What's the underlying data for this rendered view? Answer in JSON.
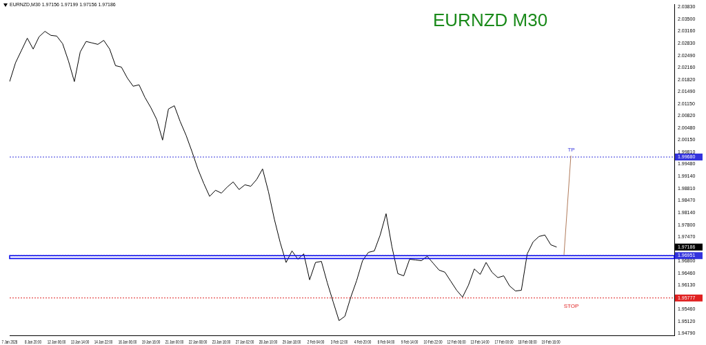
{
  "chart_data": {
    "type": "line",
    "title": "EURNZD M30",
    "subtitle": "EURNZD,M30 1.97156 1.97199 1.97156 1.97186",
    "categories": [
      "7 Jan 2026",
      null,
      null,
      null,
      "8 Jan 20:00",
      null,
      null,
      null,
      "12 Jan 06:00",
      null,
      null,
      null,
      "13 Jan 14:00",
      null,
      null,
      null,
      "14 Jan 22:00",
      null,
      null,
      null,
      "16 Jan 06:00",
      null,
      null,
      null,
      "19 Jan 16:00",
      null,
      null,
      null,
      "21 Jan 00:00",
      null,
      null,
      null,
      "22 Jan 08:00",
      null,
      null,
      null,
      "23 Jan 16:00",
      null,
      null,
      null,
      "27 Jan 02:00",
      null,
      null,
      null,
      "28 Jan 10:00",
      null,
      null,
      null,
      "29 Jan 18:00",
      null,
      null,
      null,
      "2 Feb 04:00",
      null,
      null,
      null,
      "3 Feb 12:00",
      null,
      null,
      null,
      "4 Feb 20:00",
      null,
      null,
      null,
      "6 Feb 04:00",
      null,
      null,
      null,
      "9 Feb 14:00",
      null,
      null,
      null,
      "10 Feb 22:00",
      null,
      null,
      null,
      "12 Feb 06:00",
      null,
      null,
      null,
      "13 Feb 14:00",
      null,
      null,
      null,
      "17 Feb 00:00",
      null,
      null,
      null,
      "18 Feb 08:00",
      null,
      null,
      null,
      "19 Feb 16:00",
      null,
      null,
      null,
      null,
      null,
      null,
      null,
      null,
      null,
      null,
      null,
      null,
      null,
      null,
      null,
      null,
      null,
      null,
      null,
      null,
      null
    ],
    "series": [
      {
        "color": "#000000",
        "values": [
          2.0177,
          2.0229,
          2.0263,
          2.0297,
          2.0267,
          2.0301,
          2.0316,
          2.0305,
          2.0303,
          2.0282,
          2.0234,
          2.0177,
          2.0259,
          2.0288,
          2.0284,
          2.028,
          2.0291,
          2.0267,
          2.0221,
          2.0217,
          2.0187,
          2.0164,
          2.0168,
          2.0133,
          2.0105,
          2.0072,
          2.0015,
          2.0101,
          2.011,
          2.0066,
          2.0028,
          1.9983,
          1.9935,
          1.9895,
          1.9859,
          1.9876,
          1.9868,
          1.9885,
          1.9899,
          1.9878,
          1.9891,
          1.9887,
          1.9906,
          1.9935,
          1.9872,
          1.9796,
          1.9731,
          1.9676,
          1.9708,
          1.9685,
          1.97,
          1.9628,
          1.9676,
          1.9679,
          1.962,
          1.9567,
          1.9515,
          1.9527,
          1.958,
          1.9626,
          1.9681,
          1.9704,
          1.9708,
          1.9752,
          1.9811,
          1.9719,
          1.9645,
          1.9639,
          1.9685,
          1.9683,
          1.9681,
          1.9693,
          1.9674,
          1.9655,
          1.9649,
          1.9624,
          1.9599,
          1.958,
          1.9613,
          1.9658,
          1.9643,
          1.9676,
          1.9649,
          1.9634,
          1.9639,
          1.9611,
          1.9597,
          1.9599,
          1.97,
          1.9733,
          1.9748,
          1.9752,
          1.9725,
          1.97186,
          null,
          null,
          null,
          null,
          null,
          null,
          null,
          null,
          null,
          null,
          null,
          null,
          null,
          null,
          null,
          null,
          null,
          null,
          null,
          null
        ]
      }
    ],
    "ylim": [
      1.9473,
      2.0391
    ],
    "yticks": [
      {
        "value": 2.0383,
        "label": "2.03830"
      },
      {
        "value": 2.035,
        "label": "2.03500"
      },
      {
        "value": 2.0316,
        "label": "2.03160"
      },
      {
        "value": 2.0283,
        "label": "2.02830"
      },
      {
        "value": 2.0249,
        "label": "2.02490"
      },
      {
        "value": 2.0216,
        "label": "2.02160"
      },
      {
        "value": 2.0182,
        "label": "2.01820"
      },
      {
        "value": 2.0149,
        "label": "2.01490"
      },
      {
        "value": 2.0115,
        "label": "2.01150"
      },
      {
        "value": 2.0082,
        "label": "2.00820"
      },
      {
        "value": 2.0048,
        "label": "2.00480"
      },
      {
        "value": 2.0015,
        "label": "2.00150"
      },
      {
        "value": 1.9981,
        "label": "1.99810"
      },
      {
        "value": 1.9968,
        "label": "1.99680"
      },
      {
        "value": 1.9948,
        "label": "1.99480"
      },
      {
        "value": 1.9914,
        "label": "1.99140"
      },
      {
        "value": 1.9881,
        "label": "1.98810"
      },
      {
        "value": 1.9847,
        "label": "1.98470"
      },
      {
        "value": 1.9814,
        "label": "1.98140"
      },
      {
        "value": 1.978,
        "label": "1.97800"
      },
      {
        "value": 1.9747,
        "label": "1.97470"
      },
      {
        "value": 1.97186,
        "label": "1.97186"
      },
      {
        "value": 1.96951,
        "label": "1.96951"
      },
      {
        "value": 1.968,
        "label": "1.96800"
      },
      {
        "value": 1.9646,
        "label": "1.96460"
      },
      {
        "value": 1.9613,
        "label": "1.96130"
      },
      {
        "value": 1.95777,
        "label": "1.95777"
      },
      {
        "value": 1.9546,
        "label": "1.95460"
      },
      {
        "value": 1.9512,
        "label": "1.95120"
      },
      {
        "value": 1.9479,
        "label": "1.94790"
      }
    ],
    "ref_lines": [
      {
        "axis": "y",
        "value": 1.9968,
        "label": "TP",
        "color": "#3333dd",
        "line_style": "dotted"
      },
      {
        "axis": "y",
        "value": 1.96951,
        "color": "#3333dd",
        "line_style": "dotted"
      },
      {
        "axis": "y",
        "value": 1.95777,
        "label": "STOP",
        "color": "#e02020",
        "line_style": "dotted"
      }
    ],
    "bands": [
      {
        "axis": "y",
        "from": 1.9687,
        "to": 1.96951,
        "color": "#0000ee"
      }
    ],
    "marker": "none",
    "line_style": "solid",
    "grid": false,
    "legend": false
  }
}
